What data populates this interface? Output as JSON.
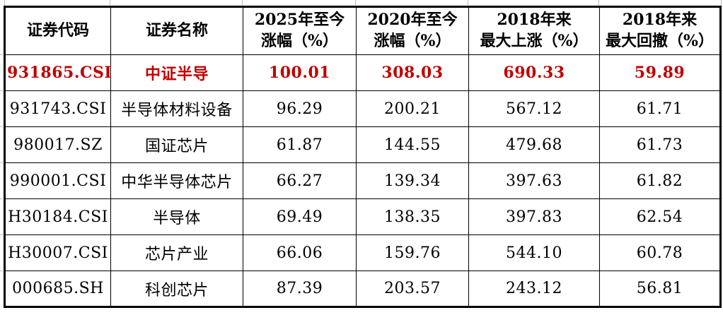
{
  "colors": {
    "highlight_red": "#c00000",
    "border_black": "#000000",
    "gridline_gray": "#bdbdbd",
    "background": "#ffffff"
  },
  "chart_data": {
    "type": "table",
    "columns": [
      "证券代码",
      "证券名称",
      "2025年至今\n涨幅（%）",
      "2020年至今\n涨幅（%）",
      "2018年来\n最大上涨（%）",
      "2018年来\n最大回撤（%）"
    ],
    "rows": [
      [
        "931865.CSI",
        "中证半导",
        "100.01",
        "308.03",
        "690.33",
        "59.89"
      ],
      [
        "931743.CSI",
        "半导体材料设备",
        "96.29",
        "200.21",
        "567.12",
        "61.71"
      ],
      [
        "980017.SZ",
        "国证芯片",
        "61.87",
        "144.55",
        "479.68",
        "61.73"
      ],
      [
        "990001.CSI",
        "中华半导体芯片",
        "66.27",
        "139.34",
        "397.63",
        "61.82"
      ],
      [
        "H30184.CSI",
        "半导体",
        "69.49",
        "138.35",
        "397.83",
        "62.54"
      ],
      [
        "H30007.CSI",
        "芯片产业",
        "66.06",
        "159.76",
        "544.10",
        "60.78"
      ],
      [
        "000685.SH",
        "科创芯片",
        "87.39",
        "203.57",
        "243.12",
        "56.81"
      ]
    ],
    "highlighted_row_index": 0,
    "highlight_color": "#c00000",
    "layout_hints": {
      "grid": true,
      "outer_border": "thick-black",
      "inner_border": "thin-black",
      "header_rows": 1
    }
  }
}
